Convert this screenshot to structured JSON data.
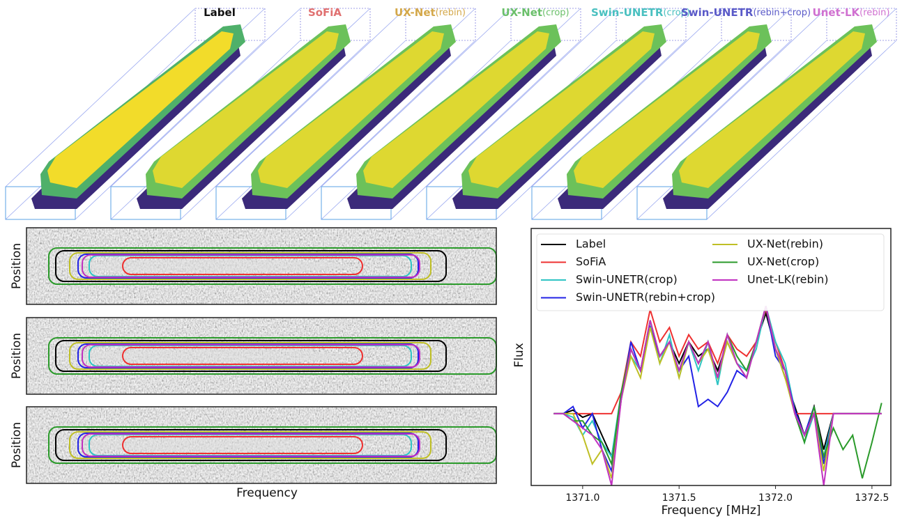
{
  "renders": [
    {
      "name": "Label",
      "color": "#111111"
    },
    {
      "name": "SoFiA",
      "color": "#e07070"
    },
    {
      "name": "UX-Net",
      "variant": "(rebin)",
      "color": "#d4a84a"
    },
    {
      "name": "UX-Net",
      "variant": "(crop)",
      "color": "#6abf6a"
    },
    {
      "name": "Swin-UNETR",
      "variant": "(crop)",
      "color": "#4ac0c0"
    },
    {
      "name": "Swin-UNETR",
      "variant": "(rebin+crop)",
      "color": "#5a5ac8"
    },
    {
      "name": "Unet-LK",
      "variant": "(rebin)",
      "color": "#d070d0"
    }
  ],
  "slices": {
    "panels": [
      {
        "y_label": "Position"
      },
      {
        "y_label": "Position"
      },
      {
        "y_label": "Position"
      }
    ],
    "x_label": "Frequency"
  },
  "chart_data": {
    "type": "line",
    "x_label": "Frequency [MHz]",
    "y_label": "Flux",
    "x": [
      1370.85,
      1370.9,
      1370.95,
      1371.0,
      1371.05,
      1371.1,
      1371.15,
      1371.2,
      1371.25,
      1371.3,
      1371.35,
      1371.4,
      1371.45,
      1371.5,
      1371.55,
      1371.6,
      1371.65,
      1371.7,
      1371.75,
      1371.8,
      1371.85,
      1371.9,
      1371.95,
      1372.0,
      1372.05,
      1372.1,
      1372.15,
      1372.2,
      1372.25,
      1372.3,
      1372.35,
      1372.4,
      1372.45,
      1372.5,
      1372.55
    ],
    "xlim": [
      1370.733,
      1372.598
    ],
    "xticks": [
      {
        "value": 1371.0,
        "label": "1371.0"
      },
      {
        "value": 1371.5,
        "label": "1371.5"
      },
      {
        "value": 1372.0,
        "label": "1372.0"
      },
      {
        "value": 1372.5,
        "label": "1372.5"
      }
    ],
    "ylim": [
      -1,
      2.58
    ],
    "legend": "upper",
    "series": [
      {
        "name": "Label",
        "color": "#000000",
        "values": [
          0,
          0,
          0.05,
          -0.05,
          0,
          -0.3,
          -0.6,
          0.2,
          0.9,
          0.6,
          1.2,
          0.8,
          1.0,
          0.7,
          1.0,
          0.8,
          0.9,
          0.6,
          1.0,
          0.7,
          0.5,
          1.0,
          1.4,
          0.9,
          0.5,
          0.1,
          -0.3,
          0.1,
          -0.5,
          0,
          0,
          0,
          0,
          0,
          0
        ]
      },
      {
        "name": "SoFiA",
        "color": "#ee3030",
        "values": [
          0,
          0,
          0,
          0,
          0,
          0,
          0,
          0.3,
          1.0,
          0.8,
          1.45,
          1.0,
          1.2,
          0.8,
          1.1,
          0.9,
          1.0,
          0.7,
          1.1,
          0.9,
          0.8,
          1.0,
          1.45,
          1.0,
          0.6,
          0,
          0,
          0,
          0,
          0,
          0,
          0,
          0,
          0,
          0
        ]
      },
      {
        "name": "Swin-UNETR(crop)",
        "color": "#2ec4c4",
        "values": [
          0,
          0,
          -0.05,
          -0.3,
          -0.1,
          -0.4,
          -0.6,
          0.3,
          0.8,
          0.6,
          1.3,
          0.7,
          1.1,
          0.5,
          1.0,
          0.6,
          1.0,
          0.4,
          1.1,
          0.7,
          0.6,
          0.9,
          1.5,
          1.0,
          0.7,
          0.05,
          -0.4,
          0,
          -0.6,
          0,
          0,
          0,
          0,
          0,
          0
        ]
      },
      {
        "name": "Swin-UNETR(rebin+crop)",
        "color": "#2222e6",
        "values": [
          0,
          0,
          0.1,
          -0.2,
          0,
          -0.5,
          -0.8,
          0.2,
          1.0,
          0.6,
          1.2,
          0.8,
          1.0,
          0.6,
          0.8,
          0.1,
          0.2,
          0.1,
          0.3,
          0.6,
          0.5,
          1.0,
          1.5,
          0.8,
          0.6,
          0.05,
          -0.3,
          0.1,
          -0.7,
          0,
          0,
          0,
          0,
          0,
          0
        ]
      },
      {
        "name": "UX-Net(rebin)",
        "color": "#bfbf25",
        "values": [
          0,
          0,
          0,
          -0.3,
          -0.7,
          -0.5,
          -0.9,
          0.2,
          0.8,
          0.5,
          1.2,
          0.7,
          1.0,
          0.5,
          1.0,
          0.7,
          0.9,
          0.5,
          1.0,
          0.7,
          0.5,
          1.0,
          1.5,
          0.9,
          0.5,
          0,
          -0.3,
          0,
          -0.8,
          0,
          0,
          0,
          0,
          0,
          0
        ]
      },
      {
        "name": "UX-Net(crop)",
        "color": "#2a9a2a",
        "values": [
          0,
          0,
          -0.1,
          -0.1,
          -0.3,
          -0.4,
          -0.7,
          0.3,
          0.9,
          0.6,
          1.3,
          0.8,
          1.0,
          0.6,
          1.0,
          0.7,
          1.0,
          0.5,
          1.1,
          0.8,
          0.6,
          1.0,
          1.5,
          0.9,
          0.6,
          0,
          -0.4,
          0.1,
          -0.6,
          -0.2,
          -0.5,
          -0.3,
          -0.9,
          -0.4,
          0.15
        ]
      },
      {
        "name": "Unet-LK(rebin)",
        "color": "#c030c0",
        "values": [
          0,
          0,
          -0.1,
          -0.2,
          -0.3,
          -0.5,
          -1.0,
          0.2,
          0.9,
          0.6,
          1.3,
          0.8,
          1.0,
          0.6,
          1.0,
          0.7,
          1.0,
          0.5,
          1.1,
          0.7,
          0.5,
          1.0,
          1.5,
          0.9,
          0.6,
          0,
          -0.3,
          0,
          -1.0,
          0,
          0,
          0,
          0,
          0,
          0
        ]
      }
    ]
  }
}
